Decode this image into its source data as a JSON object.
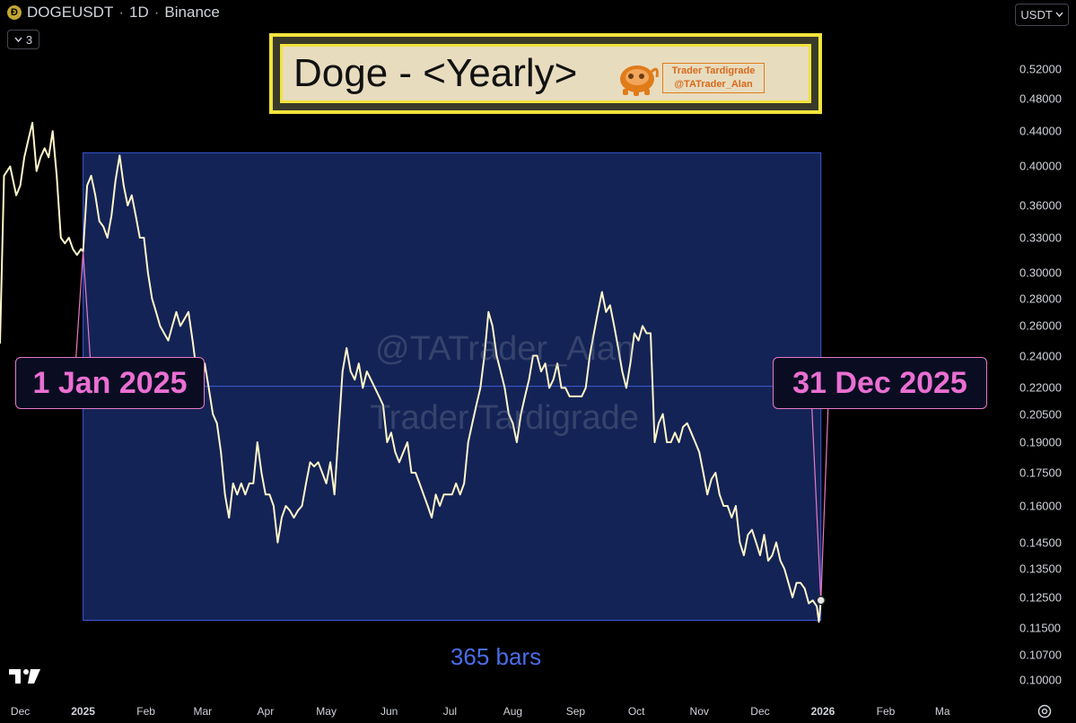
{
  "header": {
    "symbol": "DOGEUSDT",
    "interval": "1D",
    "exchange": "Binance",
    "separator": "·",
    "indicator_count": "3",
    "currency": "USDT"
  },
  "title_banner": {
    "title": "Doge - <Yearly>",
    "brand_line1": "Trader Tardigrade",
    "brand_line2": "@TATrader_Alan"
  },
  "watermarks": [
    "@TATrader_Alan",
    "Trader Tardigrade"
  ],
  "icons": {
    "coin": "doge-coin-icon",
    "logo": "tradingview-logo-icon",
    "settings": "gear-icon",
    "dropdown": "chevron-down-icon"
  },
  "colors": {
    "price_line": "#fff6c8",
    "range_fill": "#142356",
    "range_border": "#3d5bd9",
    "label_text": "#ea6fd2",
    "title_border": "#f2e33c",
    "bars_text": "#4a6de8"
  },
  "chart_data": {
    "type": "line",
    "title": "",
    "xlabel": "",
    "ylabel": "",
    "y_scale": "log",
    "ylim": [
      0.096,
      0.6
    ],
    "xlim": [
      "2024-11-21",
      "2026-03-31"
    ],
    "y_ticks": [
      "0.52000",
      "0.48000",
      "0.44000",
      "0.40000",
      "0.36000",
      "0.33000",
      "0.30000",
      "0.28000",
      "0.26000",
      "0.24000",
      "0.22000",
      "0.20500",
      "0.19000",
      "0.17500",
      "0.16000",
      "0.14500",
      "0.13500",
      "0.12500",
      "0.11500",
      "0.10700",
      "0.10000"
    ],
    "x_ticks": [
      {
        "date": "2024-12-01",
        "label": "Dec",
        "bold": false
      },
      {
        "date": "2025-01-01",
        "label": "2025",
        "bold": true
      },
      {
        "date": "2025-02-01",
        "label": "Feb",
        "bold": false
      },
      {
        "date": "2025-03-01",
        "label": "Mar",
        "bold": false
      },
      {
        "date": "2025-04-01",
        "label": "Apr",
        "bold": false
      },
      {
        "date": "2025-05-01",
        "label": "May",
        "bold": false
      },
      {
        "date": "2025-06-01",
        "label": "Jun",
        "bold": false
      },
      {
        "date": "2025-07-01",
        "label": "Jul",
        "bold": false
      },
      {
        "date": "2025-08-01",
        "label": "Aug",
        "bold": false
      },
      {
        "date": "2025-09-01",
        "label": "Sep",
        "bold": false
      },
      {
        "date": "2025-10-01",
        "label": "Oct",
        "bold": false
      },
      {
        "date": "2025-11-01",
        "label": "Nov",
        "bold": false
      },
      {
        "date": "2025-12-01",
        "label": "Dec",
        "bold": false
      },
      {
        "date": "2026-01-01",
        "label": "2026",
        "bold": true
      },
      {
        "date": "2026-02-01",
        "label": "Feb",
        "bold": false
      },
      {
        "date": "2026-03-01",
        "label": "Ma",
        "bold": false
      }
    ],
    "series": [
      {
        "points": [
          [
            "2024-11-21",
            0.248
          ],
          [
            "2024-11-23",
            0.39
          ],
          [
            "2024-11-26",
            0.4
          ],
          [
            "2024-11-29",
            0.37
          ],
          [
            "2024-12-01",
            0.38
          ],
          [
            "2024-12-03",
            0.41
          ],
          [
            "2024-12-05",
            0.43
          ],
          [
            "2024-12-07",
            0.45
          ],
          [
            "2024-12-09",
            0.395
          ],
          [
            "2024-12-11",
            0.41
          ],
          [
            "2024-12-13",
            0.42
          ],
          [
            "2024-12-15",
            0.41
          ],
          [
            "2024-12-17",
            0.44
          ],
          [
            "2024-12-19",
            0.39
          ],
          [
            "2024-12-21",
            0.33
          ],
          [
            "2024-12-23",
            0.325
          ],
          [
            "2024-12-25",
            0.33
          ],
          [
            "2024-12-27",
            0.32
          ],
          [
            "2024-12-29",
            0.315
          ],
          [
            "2024-12-31",
            0.32
          ],
          [
            "2025-01-01",
            0.318
          ],
          [
            "2025-01-03",
            0.38
          ],
          [
            "2025-01-05",
            0.39
          ],
          [
            "2025-01-07",
            0.37
          ],
          [
            "2025-01-09",
            0.345
          ],
          [
            "2025-01-11",
            0.34
          ],
          [
            "2025-01-13",
            0.33
          ],
          [
            "2025-01-15",
            0.35
          ],
          [
            "2025-01-17",
            0.385
          ],
          [
            "2025-01-19",
            0.412
          ],
          [
            "2025-01-21",
            0.38
          ],
          [
            "2025-01-23",
            0.36
          ],
          [
            "2025-01-25",
            0.37
          ],
          [
            "2025-01-27",
            0.35
          ],
          [
            "2025-01-29",
            0.33
          ],
          [
            "2025-01-31",
            0.33
          ],
          [
            "2025-02-02",
            0.3
          ],
          [
            "2025-02-04",
            0.28
          ],
          [
            "2025-02-06",
            0.27
          ],
          [
            "2025-02-08",
            0.26
          ],
          [
            "2025-02-10",
            0.255
          ],
          [
            "2025-02-12",
            0.25
          ],
          [
            "2025-02-14",
            0.26
          ],
          [
            "2025-02-16",
            0.27
          ],
          [
            "2025-02-18",
            0.26
          ],
          [
            "2025-02-20",
            0.265
          ],
          [
            "2025-02-22",
            0.27
          ],
          [
            "2025-02-24",
            0.25
          ],
          [
            "2025-02-26",
            0.23
          ],
          [
            "2025-02-28",
            0.21
          ],
          [
            "2025-03-02",
            0.235
          ],
          [
            "2025-03-04",
            0.22
          ],
          [
            "2025-03-06",
            0.205
          ],
          [
            "2025-03-08",
            0.2
          ],
          [
            "2025-03-10",
            0.185
          ],
          [
            "2025-03-12",
            0.165
          ],
          [
            "2025-03-14",
            0.155
          ],
          [
            "2025-03-16",
            0.17
          ],
          [
            "2025-03-18",
            0.165
          ],
          [
            "2025-03-20",
            0.17
          ],
          [
            "2025-03-22",
            0.165
          ],
          [
            "2025-03-24",
            0.17
          ],
          [
            "2025-03-26",
            0.17
          ],
          [
            "2025-03-28",
            0.19
          ],
          [
            "2025-03-30",
            0.175
          ],
          [
            "2025-04-01",
            0.165
          ],
          [
            "2025-04-03",
            0.165
          ],
          [
            "2025-04-05",
            0.16
          ],
          [
            "2025-04-07",
            0.145
          ],
          [
            "2025-04-09",
            0.155
          ],
          [
            "2025-04-11",
            0.16
          ],
          [
            "2025-04-13",
            0.158
          ],
          [
            "2025-04-15",
            0.155
          ],
          [
            "2025-04-17",
            0.158
          ],
          [
            "2025-04-19",
            0.16
          ],
          [
            "2025-04-21",
            0.17
          ],
          [
            "2025-04-23",
            0.18
          ],
          [
            "2025-04-25",
            0.178
          ],
          [
            "2025-04-27",
            0.18
          ],
          [
            "2025-04-29",
            0.175
          ],
          [
            "2025-05-01",
            0.17
          ],
          [
            "2025-05-03",
            0.18
          ],
          [
            "2025-05-05",
            0.165
          ],
          [
            "2025-05-07",
            0.195
          ],
          [
            "2025-05-09",
            0.23
          ],
          [
            "2025-05-11",
            0.245
          ],
          [
            "2025-05-13",
            0.23
          ],
          [
            "2025-05-15",
            0.225
          ],
          [
            "2025-05-17",
            0.235
          ],
          [
            "2025-05-19",
            0.22
          ],
          [
            "2025-05-21",
            0.23
          ],
          [
            "2025-05-23",
            0.225
          ],
          [
            "2025-05-25",
            0.22
          ],
          [
            "2025-05-27",
            0.215
          ],
          [
            "2025-05-29",
            0.21
          ],
          [
            "2025-05-31",
            0.19
          ],
          [
            "2025-06-02",
            0.195
          ],
          [
            "2025-06-04",
            0.185
          ],
          [
            "2025-06-06",
            0.18
          ],
          [
            "2025-06-08",
            0.185
          ],
          [
            "2025-06-10",
            0.19
          ],
          [
            "2025-06-12",
            0.175
          ],
          [
            "2025-06-14",
            0.175
          ],
          [
            "2025-06-16",
            0.17
          ],
          [
            "2025-06-18",
            0.165
          ],
          [
            "2025-06-20",
            0.16
          ],
          [
            "2025-06-22",
            0.155
          ],
          [
            "2025-06-24",
            0.165
          ],
          [
            "2025-06-26",
            0.16
          ],
          [
            "2025-06-28",
            0.165
          ],
          [
            "2025-06-30",
            0.165
          ],
          [
            "2025-07-02",
            0.165
          ],
          [
            "2025-07-04",
            0.17
          ],
          [
            "2025-07-06",
            0.165
          ],
          [
            "2025-07-08",
            0.17
          ],
          [
            "2025-07-10",
            0.19
          ],
          [
            "2025-07-12",
            0.2
          ],
          [
            "2025-07-14",
            0.21
          ],
          [
            "2025-07-16",
            0.22
          ],
          [
            "2025-07-18",
            0.24
          ],
          [
            "2025-07-20",
            0.27
          ],
          [
            "2025-07-22",
            0.26
          ],
          [
            "2025-07-24",
            0.24
          ],
          [
            "2025-07-26",
            0.23
          ],
          [
            "2025-07-28",
            0.22
          ],
          [
            "2025-07-30",
            0.205
          ],
          [
            "2025-08-01",
            0.2
          ],
          [
            "2025-08-03",
            0.19
          ],
          [
            "2025-08-05",
            0.205
          ],
          [
            "2025-08-07",
            0.215
          ],
          [
            "2025-08-09",
            0.225
          ],
          [
            "2025-08-11",
            0.24
          ],
          [
            "2025-08-13",
            0.24
          ],
          [
            "2025-08-15",
            0.23
          ],
          [
            "2025-08-17",
            0.235
          ],
          [
            "2025-08-19",
            0.22
          ],
          [
            "2025-08-21",
            0.225
          ],
          [
            "2025-08-23",
            0.235
          ],
          [
            "2025-08-25",
            0.22
          ],
          [
            "2025-08-27",
            0.22
          ],
          [
            "2025-08-29",
            0.215
          ],
          [
            "2025-08-31",
            0.215
          ],
          [
            "2025-09-02",
            0.215
          ],
          [
            "2025-09-04",
            0.215
          ],
          [
            "2025-09-06",
            0.22
          ],
          [
            "2025-09-08",
            0.24
          ],
          [
            "2025-09-10",
            0.255
          ],
          [
            "2025-09-12",
            0.27
          ],
          [
            "2025-09-14",
            0.285
          ],
          [
            "2025-09-16",
            0.27
          ],
          [
            "2025-09-18",
            0.275
          ],
          [
            "2025-09-20",
            0.26
          ],
          [
            "2025-09-22",
            0.245
          ],
          [
            "2025-09-24",
            0.23
          ],
          [
            "2025-09-26",
            0.22
          ],
          [
            "2025-09-28",
            0.235
          ],
          [
            "2025-09-30",
            0.255
          ],
          [
            "2025-10-02",
            0.25
          ],
          [
            "2025-10-04",
            0.26
          ],
          [
            "2025-10-06",
            0.255
          ],
          [
            "2025-10-08",
            0.255
          ],
          [
            "2025-10-10",
            0.19
          ],
          [
            "2025-10-12",
            0.2
          ],
          [
            "2025-10-14",
            0.205
          ],
          [
            "2025-10-16",
            0.19
          ],
          [
            "2025-10-18",
            0.19
          ],
          [
            "2025-10-20",
            0.195
          ],
          [
            "2025-10-22",
            0.19
          ],
          [
            "2025-10-24",
            0.198
          ],
          [
            "2025-10-26",
            0.2
          ],
          [
            "2025-10-28",
            0.195
          ],
          [
            "2025-10-30",
            0.19
          ],
          [
            "2025-11-01",
            0.185
          ],
          [
            "2025-11-03",
            0.175
          ],
          [
            "2025-11-05",
            0.165
          ],
          [
            "2025-11-07",
            0.172
          ],
          [
            "2025-11-09",
            0.175
          ],
          [
            "2025-11-11",
            0.165
          ],
          [
            "2025-11-13",
            0.16
          ],
          [
            "2025-11-15",
            0.16
          ],
          [
            "2025-11-17",
            0.155
          ],
          [
            "2025-11-19",
            0.16
          ],
          [
            "2025-11-21",
            0.145
          ],
          [
            "2025-11-23",
            0.14
          ],
          [
            "2025-11-25",
            0.148
          ],
          [
            "2025-11-27",
            0.15
          ],
          [
            "2025-11-29",
            0.145
          ],
          [
            "2025-12-01",
            0.14
          ],
          [
            "2025-12-03",
            0.148
          ],
          [
            "2025-12-05",
            0.138
          ],
          [
            "2025-12-07",
            0.14
          ],
          [
            "2025-12-09",
            0.145
          ],
          [
            "2025-12-11",
            0.138
          ],
          [
            "2025-12-13",
            0.135
          ],
          [
            "2025-12-15",
            0.13
          ],
          [
            "2025-12-17",
            0.125
          ],
          [
            "2025-12-19",
            0.13
          ],
          [
            "2025-12-21",
            0.13
          ],
          [
            "2025-12-23",
            0.128
          ],
          [
            "2025-12-25",
            0.123
          ],
          [
            "2025-12-27",
            0.124
          ],
          [
            "2025-12-29",
            0.122
          ],
          [
            "2025-12-30",
            0.117
          ],
          [
            "2025-12-31",
            0.124
          ]
        ]
      }
    ],
    "range": {
      "start": "2025-01-01",
      "end": "2025-12-31",
      "start_label": "1 Jan 2025",
      "end_label": "31 Dec 2025",
      "bars_label": "365 bars",
      "high": 0.415,
      "low": 0.1175,
      "mid_line": 0.221
    }
  }
}
